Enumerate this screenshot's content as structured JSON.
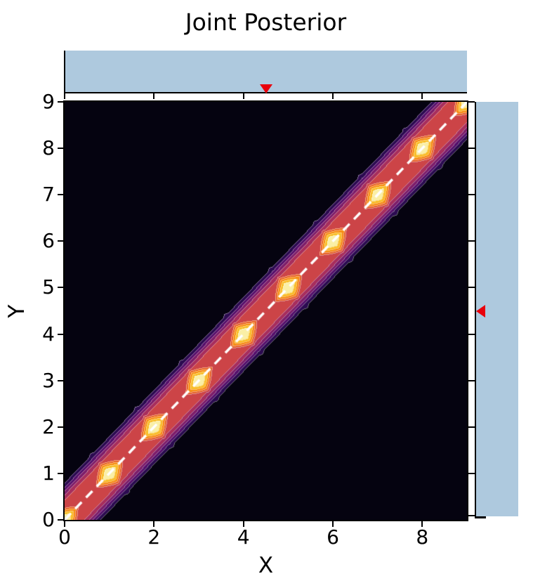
{
  "title": "Joint Posterior",
  "chart_data": {
    "type": "heatmap",
    "subtype": "filled-contour joint density with uniform marginal bands",
    "title": "Joint Posterior",
    "xlabel": "X",
    "ylabel": "Y",
    "xlim": [
      0,
      9
    ],
    "ylim": [
      0,
      9
    ],
    "x_ticks": [
      0,
      2,
      4,
      6,
      8
    ],
    "y_ticks": [
      0,
      1,
      2,
      3,
      4,
      5,
      6,
      7,
      8,
      9
    ],
    "grid": false,
    "legend": false,
    "colormap": "inferno",
    "n_levels": 10,
    "level_colors": [
      "#050310",
      "#2c0b51",
      "#56106b",
      "#7e1e6a",
      "#a72e5d",
      "#cc4447",
      "#e86429",
      "#f78e11",
      "#f9be28",
      "#faefa5"
    ],
    "contour_line_overlay": {
      "color": "#ffffff",
      "alpha": 0.42,
      "width": 1
    },
    "density_model": {
      "description": "diagonal ridge along y=x with square-contoured peaks at integer lattice points",
      "ridge": {
        "peak": 0.58,
        "scale": 0.48
      },
      "peaks": {
        "centers": [
          [
            0,
            0
          ],
          [
            1,
            1
          ],
          [
            2,
            2
          ],
          [
            3,
            3
          ],
          [
            4,
            4
          ],
          [
            5,
            5
          ],
          [
            6,
            6
          ],
          [
            7,
            7
          ],
          [
            8,
            8
          ],
          [
            9,
            9
          ]
        ],
        "peak_value": 1.0,
        "sigma": 0.29,
        "diag_softening_sigma": 0.55
      }
    },
    "identity_line": {
      "from": [
        0,
        0
      ],
      "to": [
        9,
        9
      ],
      "color": "#ffffff",
      "style": "dashed",
      "width": 3.5,
      "dash": [
        13,
        9
      ]
    },
    "marginal_top": {
      "type": "uniform-density-band",
      "fill_color": "#aec9de",
      "marker": {
        "shape": "triangle-down",
        "color": "#e8000b",
        "x": 4.5
      }
    },
    "marginal_right": {
      "type": "uniform-density-band",
      "fill_color": "#aec9de",
      "marker": {
        "shape": "triangle-left",
        "color": "#e8000b",
        "y": 4.5
      }
    }
  },
  "style_colors": {
    "spine": "#000000",
    "figure_background": "#ffffff",
    "text": "#000000"
  }
}
